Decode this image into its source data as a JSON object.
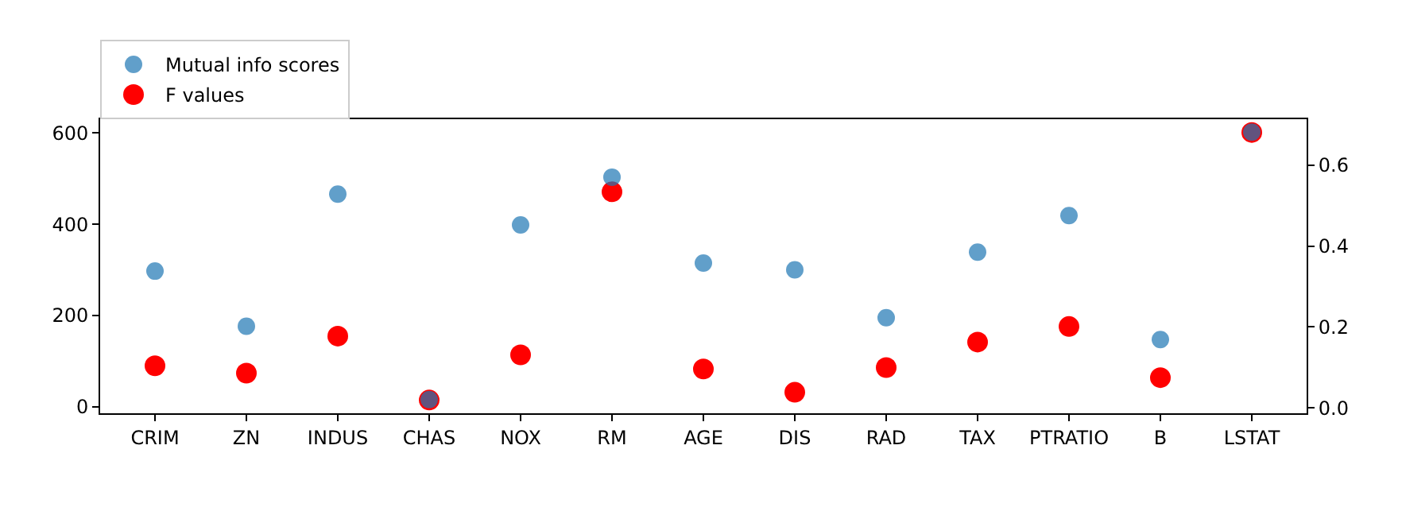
{
  "chart_data": {
    "type": "scatter",
    "categories": [
      "CRIM",
      "ZN",
      "INDUS",
      "CHAS",
      "NOX",
      "RM",
      "AGE",
      "DIS",
      "RAD",
      "TAX",
      "PTRATIO",
      "B",
      "LSTAT"
    ],
    "series": [
      {
        "name": "Mutual info scores",
        "color": "#1f77b4",
        "axis": "y2",
        "values": [
          0.338,
          0.202,
          0.528,
          0.021,
          0.452,
          0.57,
          0.358,
          0.341,
          0.223,
          0.385,
          0.475,
          0.169,
          0.681
        ]
      },
      {
        "name": "F values",
        "color": "#ff0000",
        "values": [
          90,
          74,
          155,
          15,
          114,
          471,
          83,
          32,
          86,
          142,
          176,
          64,
          601
        ]
      }
    ],
    "ylim": [
      -14,
      630
    ],
    "yticks": [
      0,
      200,
      400,
      600
    ],
    "y2lim": [
      -0.013,
      0.713
    ],
    "y2ticks": [
      {
        "value": 0,
        "label": "0.0"
      },
      {
        "value": 0.2,
        "label": "0.2"
      },
      {
        "value": 0.4,
        "label": "0.4"
      },
      {
        "value": 0.6,
        "label": "0.6"
      }
    ],
    "marker": "circle",
    "grid": false,
    "legend": "top left"
  }
}
